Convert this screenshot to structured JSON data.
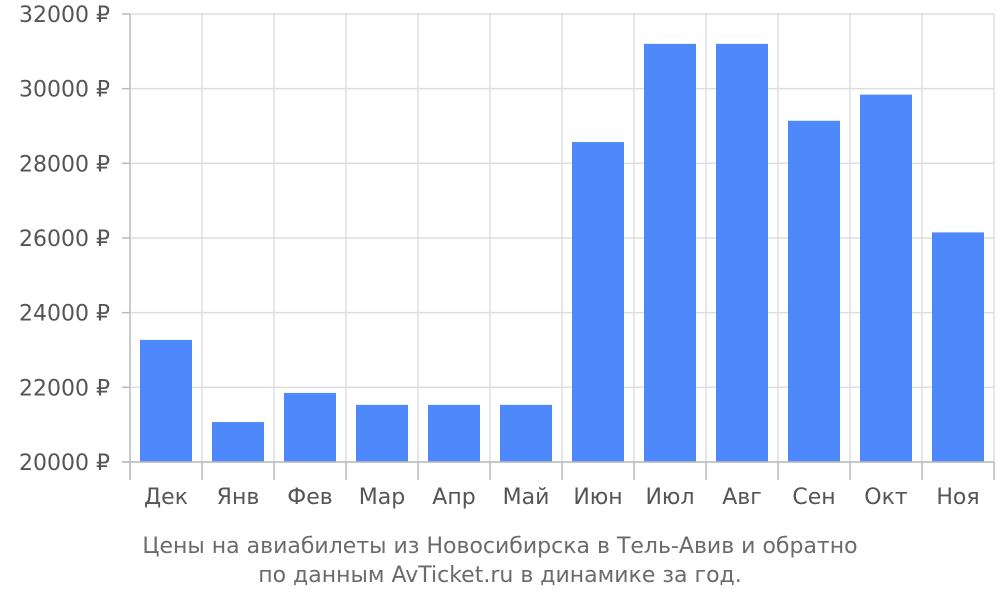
{
  "chart_data": {
    "type": "bar",
    "categories": [
      "Дек",
      "Янв",
      "Фев",
      "Мар",
      "Апр",
      "Май",
      "Июн",
      "Июл",
      "Авг",
      "Сен",
      "Окт",
      "Ноя"
    ],
    "values": [
      23270,
      21070,
      21850,
      21530,
      21530,
      21530,
      28570,
      31200,
      31200,
      29140,
      29840,
      26150
    ],
    "ylim": [
      20000,
      32000
    ],
    "y_ticks": [
      "20000 ₽",
      "22000 ₽",
      "24000 ₽",
      "26000 ₽",
      "28000 ₽",
      "30000 ₽",
      "32000 ₽"
    ],
    "y_tick_values": [
      20000,
      22000,
      24000,
      26000,
      28000,
      30000,
      32000
    ],
    "grid": true,
    "bar_color": "#4e89fb",
    "caption_lines": [
      "Цены на авиабилеты из Новосибирска в Тель-Авив и обратно",
      "по данным AvTicket.ru в динамике за год."
    ]
  }
}
